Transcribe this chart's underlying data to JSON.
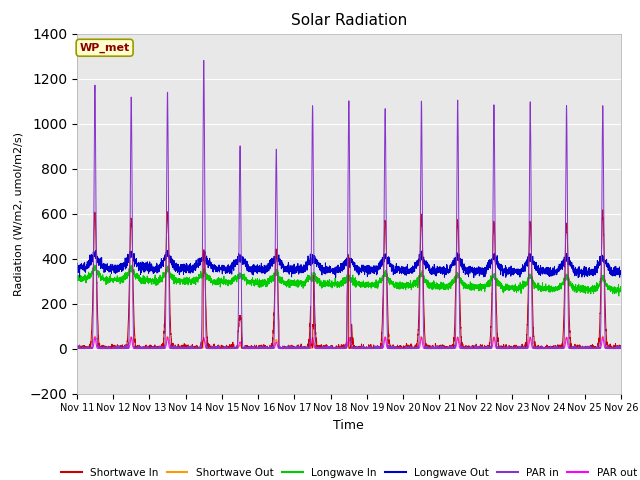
{
  "title": "Solar Radiation",
  "xlabel": "Time",
  "ylabel": "Radiation (W/m2, umol/m2/s)",
  "ylim": [
    -200,
    1400
  ],
  "yticks": [
    -200,
    0,
    200,
    400,
    600,
    800,
    1000,
    1200,
    1400
  ],
  "bg_color": "#e8e8e8",
  "legend_label": "WP_met",
  "series": {
    "shortwave_in": {
      "label": "Shortwave In",
      "color": "#cc0000"
    },
    "shortwave_out": {
      "label": "Shortwave Out",
      "color": "#ff9900"
    },
    "longwave_in": {
      "label": "Longwave In",
      "color": "#00cc00"
    },
    "longwave_out": {
      "label": "Longwave Out",
      "color": "#0000cc"
    },
    "par_in": {
      "label": "PAR in",
      "color": "#8833cc"
    },
    "par_out": {
      "label": "PAR out",
      "color": "#ff00ff"
    }
  },
  "num_days": 15,
  "day_start": 11,
  "x_tick_labels": [
    "Nov 11",
    "Nov 12",
    "Nov 13",
    "Nov 14",
    "Nov 15",
    "Nov 16",
    "Nov 17",
    "Nov 18",
    "Nov 19",
    "Nov 20",
    "Nov 21",
    "Nov 22",
    "Nov 23",
    "Nov 24",
    "Nov 25",
    "Nov 26"
  ],
  "par_in_peaks": [
    1170,
    1120,
    1140,
    1270,
    900,
    880,
    1080,
    1100,
    1070,
    1100,
    1100,
    1080,
    1080,
    1080,
    1080
  ],
  "sw_in_peaks": [
    600,
    580,
    600,
    430,
    145,
    430,
    400,
    430,
    570,
    580,
    560,
    560,
    560,
    560,
    600
  ],
  "lw_in_base": 310,
  "lw_out_base": 360,
  "par_out_peaks": [
    50,
    50,
    50,
    50,
    30,
    30,
    50,
    50,
    50,
    50,
    50,
    50,
    50,
    50,
    50
  ]
}
